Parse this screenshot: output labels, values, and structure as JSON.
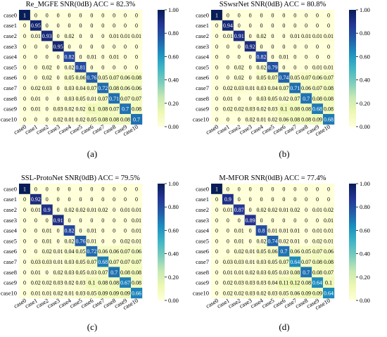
{
  "chart_data": [
    {
      "type": "heatmap",
      "panel_label": "(a)",
      "title": "Re_MGFE SNR(0dB) ACC = 82.3%",
      "categories": [
        "case0",
        "case1",
        "case2",
        "case3",
        "case4",
        "case5",
        "case6",
        "case7",
        "case8",
        "case9",
        "case10"
      ],
      "colorbar_ticks": [
        "1.00",
        "0.80",
        "0.60",
        "0.40",
        "0.20",
        "0.00"
      ],
      "zlim": [
        0,
        1
      ],
      "values": [
        [
          "1",
          "0",
          "0",
          "0",
          "0",
          "0",
          "0",
          "0",
          "0",
          "0",
          "0"
        ],
        [
          "0",
          "0.95",
          "0",
          "0",
          "0",
          "0",
          "0",
          "0",
          "0",
          "0",
          "0"
        ],
        [
          "0",
          "0.01",
          "0.93",
          "0",
          "0.02",
          "0",
          "0",
          "0",
          "0.01",
          "0.01",
          "0.01"
        ],
        [
          "0",
          "0",
          "0",
          "0.95",
          "0",
          "0",
          "0",
          "0",
          "0",
          "0",
          "0"
        ],
        [
          "0",
          "0",
          "0",
          "0",
          "0.82",
          "0",
          "0.01",
          "0",
          "0.01",
          "0",
          "0"
        ],
        [
          "0",
          "0",
          "0.02",
          "0",
          "0.02",
          "0.81",
          "0",
          "0",
          "0",
          "0",
          "0"
        ],
        [
          "0",
          "0",
          "0.02",
          "0",
          "0.05",
          "0.06",
          "0.76",
          "0.05",
          "0.07",
          "0.06",
          "0.08"
        ],
        [
          "0",
          "0.02",
          "0.03",
          "0",
          "0.03",
          "0.04",
          "0.07",
          "0.72",
          "0.08",
          "0.06",
          "0.06"
        ],
        [
          "0",
          "0.01",
          "0",
          "0",
          "0.03",
          "0.05",
          "0.01",
          "0.07",
          "0.71",
          "0.07",
          "0.07"
        ],
        [
          "0",
          "0.01",
          "0",
          "0.03",
          "0.02",
          "0.02",
          "0.1",
          "0.08",
          "0.07",
          "0.7",
          "0.08"
        ],
        [
          "0",
          "0",
          "0",
          "0.02",
          "0.01",
          "0.02",
          "0.05",
          "0.08",
          "0.08",
          "0.08",
          "0.7"
        ]
      ]
    },
    {
      "type": "heatmap",
      "panel_label": "(b)",
      "title": "SSwsrNet SNR(0dB) ACC = 80.8%",
      "categories": [
        "case0",
        "case1",
        "case2",
        "case3",
        "case4",
        "case5",
        "case6",
        "case7",
        "case8",
        "case9",
        "case10"
      ],
      "colorbar_ticks": [
        "1.00",
        "0.80",
        "0.60",
        "0.40",
        "0.20",
        "0.00"
      ],
      "zlim": [
        0,
        1
      ],
      "values": [
        [
          "1",
          "0",
          "0",
          "0",
          "0",
          "0",
          "0",
          "0",
          "0",
          "0",
          "0"
        ],
        [
          "0",
          "0.94",
          "0",
          "0",
          "0",
          "0",
          "0",
          "0",
          "0",
          "0",
          "0"
        ],
        [
          "0",
          "0.01",
          "0.91",
          "0",
          "0.02",
          "0",
          "0",
          "0.01",
          "0.01",
          "0.01",
          "0.01"
        ],
        [
          "0",
          "0",
          "0",
          "0.92",
          "0",
          "0",
          "0",
          "0",
          "0",
          "0",
          "0"
        ],
        [
          "0",
          "0",
          "0",
          "0",
          "0.82",
          "0",
          "0.01",
          "0",
          "0",
          "0",
          "0"
        ],
        [
          "0",
          "0",
          "0.02",
          "0",
          "0.02",
          "0.79",
          "0",
          "0",
          "0",
          "0.01",
          "0.01"
        ],
        [
          "0",
          "0",
          "0.02",
          "0",
          "0.05",
          "0.07",
          "0.74",
          "0.05",
          "0.07",
          "0.06",
          "0.07"
        ],
        [
          "0",
          "0.02",
          "0.03",
          "0.01",
          "0.03",
          "0.04",
          "0.07",
          "0.71",
          "0.06",
          "0.07",
          "0.08"
        ],
        [
          "0",
          "0.01",
          "0",
          "0",
          "0.03",
          "0.05",
          "0.02",
          "0.07",
          "0.7",
          "0.08",
          "0.08"
        ],
        [
          "0",
          "0.02",
          "0.02",
          "0.03",
          "0.02",
          "0.03",
          "0.1",
          "0.08",
          "0.08",
          "0.68",
          "0.08"
        ],
        [
          "0",
          "0",
          "0",
          "0.02",
          "0.01",
          "0.02",
          "0.06",
          "0.08",
          "0.08",
          "0.09",
          "0.68"
        ]
      ]
    },
    {
      "type": "heatmap",
      "panel_label": "(c)",
      "title": "SSL-ProtoNet SNR(0dB) ACC = 79.5%",
      "categories": [
        "case0",
        "case1",
        "case2",
        "case3",
        "case4",
        "case5",
        "case6",
        "case7",
        "case8",
        "case9",
        "case10"
      ],
      "colorbar_ticks": [
        "1.00",
        "0.80",
        "0.60",
        "0.40",
        "0.20",
        "0.00"
      ],
      "zlim": [
        0,
        1
      ],
      "values": [
        [
          "1",
          "0",
          "0",
          "0",
          "0",
          "0",
          "0",
          "0",
          "0",
          "0",
          "0"
        ],
        [
          "0",
          "0.92",
          "0",
          "0",
          "0",
          "0",
          "0",
          "0",
          "0",
          "0",
          "0"
        ],
        [
          "0",
          "0.01",
          "0.9",
          "0",
          "0.02",
          "0.02",
          "0.01",
          "0.02",
          "0",
          "0.01",
          "0.01"
        ],
        [
          "0",
          "0",
          "0",
          "0.91",
          "0",
          "0",
          "0",
          "0",
          "0",
          "0",
          "0.01"
        ],
        [
          "0",
          "0",
          "0.01",
          "0",
          "0.82",
          "0",
          "0.01",
          "0",
          "0",
          "0",
          "0.01"
        ],
        [
          "0",
          "0",
          "0.01",
          "0",
          "0.02",
          "0.76",
          "0.01",
          "0",
          "0",
          "0.02",
          "0.01"
        ],
        [
          "0",
          "0",
          "0.02",
          "0.01",
          "0.04",
          "0.05",
          "0.72",
          "0.06",
          "0.06",
          "0.07",
          "0.06"
        ],
        [
          "0",
          "0.03",
          "0.03",
          "0.01",
          "0.03",
          "0.05",
          "0.07",
          "0.68",
          "0.07",
          "0.07",
          "0.07"
        ],
        [
          "0",
          "0.01",
          "0",
          "0.02",
          "0.03",
          "0.05",
          "0.03",
          "0.07",
          "0.7",
          "0.08",
          "0.08"
        ],
        [
          "0",
          "0.02",
          "0.02",
          "0.03",
          "0.02",
          "0.03",
          "0.1",
          "0.08",
          "0.08",
          "0.67",
          "0.08"
        ],
        [
          "0",
          "0.01",
          "0.01",
          "0.02",
          "0.01",
          "0.03",
          "0.05",
          "0.09",
          "0.09",
          "0.09",
          "0.66"
        ]
      ]
    },
    {
      "type": "heatmap",
      "panel_label": "(d)",
      "title": "M-MFOR SNR(0dB) ACC = 77.4%",
      "categories": [
        "case0",
        "case1",
        "case2",
        "case3",
        "case4",
        "case5",
        "case6",
        "case7",
        "case8",
        "case9",
        "case10"
      ],
      "colorbar_ticks": [
        "1.00",
        "0.80",
        "0.60",
        "0.40",
        "0.20",
        "0.00"
      ],
      "zlim": [
        0,
        1
      ],
      "values": [
        [
          "1",
          "0",
          "0",
          "0",
          "0",
          "0",
          "0",
          "0",
          "0",
          "0",
          "0"
        ],
        [
          "0",
          "0.9",
          "0",
          "0",
          "0",
          "0",
          "0",
          "0",
          "0",
          "0",
          "0"
        ],
        [
          "0",
          "0.01",
          "0.87",
          "0",
          "0.02",
          "0.02",
          "0.01",
          "0.02",
          "0",
          "0.01",
          "0.02"
        ],
        [
          "0",
          "0",
          "0",
          "0.89",
          "0",
          "0",
          "0",
          "0",
          "0",
          "0",
          "0.01"
        ],
        [
          "0",
          "0",
          "0.01",
          "0",
          "0.8",
          "0.01",
          "0.01",
          "0.01",
          "0",
          "0.01",
          "0.01"
        ],
        [
          "0",
          "0",
          "0.01",
          "0",
          "0.02",
          "0.74",
          "0.02",
          "0.01",
          "0",
          "0.02",
          "0.01"
        ],
        [
          "0",
          "0",
          "0.02",
          "0.01",
          "0.05",
          "0.06",
          "0.7",
          "0.06",
          "0.05",
          "0.07",
          "0.06"
        ],
        [
          "0",
          "0.03",
          "0.03",
          "0.01",
          "0.03",
          "0.05",
          "0.07",
          "0.64",
          "0.07",
          "0.08",
          "0.08"
        ],
        [
          "0",
          "0.01",
          "0.01",
          "0.02",
          "0.03",
          "0.05",
          "0.03",
          "0.08",
          "0.7",
          "0.08",
          "0.07"
        ],
        [
          "0",
          "0.02",
          "0.03",
          "0.03",
          "0.03",
          "0.04",
          "0.11",
          "0.12",
          "0.08",
          "0.64",
          "0.1"
        ],
        [
          "0",
          "0.02",
          "0.02",
          "0.03",
          "0.02",
          "0.03",
          "0.05",
          "0.06",
          "0.09",
          "0.09",
          "0.64"
        ]
      ]
    }
  ]
}
